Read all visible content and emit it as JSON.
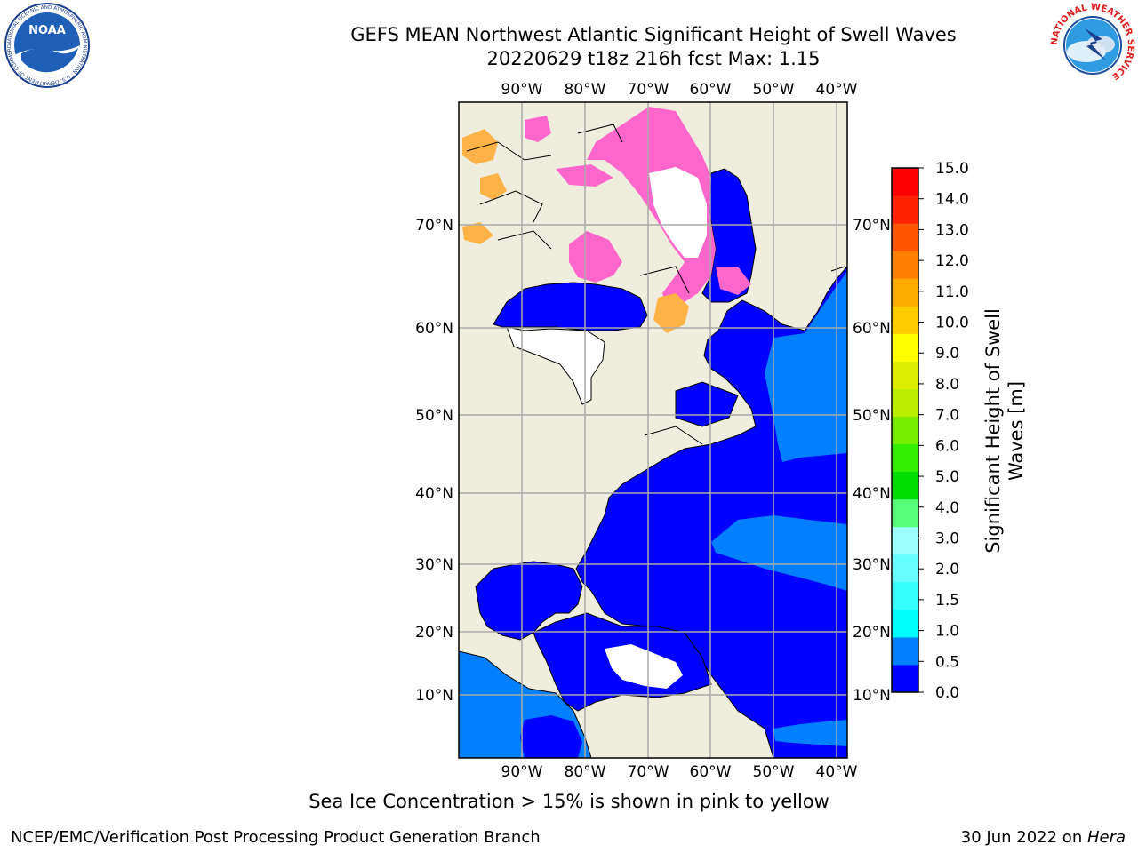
{
  "header": {
    "title_line1": "GEFS MEAN Northwest Atlantic Significant Height of Swell Waves",
    "title_line2": "20220629 t18z 216h fcst   Max: 1.15"
  },
  "logos": {
    "noaa_text": "NOAA",
    "noaa_ring": "NATIONAL OCEANIC AND ATMOSPHERIC ADMINISTRATION · U.S. DEPARTMENT OF COMMERCE",
    "nws_ring": "NATIONAL WEATHER SERVICE"
  },
  "map": {
    "lon_ticks": [
      "90°W",
      "80°W",
      "70°W",
      "60°W",
      "50°W",
      "40°W"
    ],
    "lat_ticks": [
      "70°N",
      "60°N",
      "50°N",
      "40°N",
      "30°N",
      "20°N",
      "10°N"
    ],
    "colors": {
      "land": "#efedde",
      "ocean_low": "#0000ff",
      "ocean_mid": "#0080ff",
      "no_data": "#ffffff",
      "ice_pink": "#ff66cc",
      "ice_orange": "#ffb347",
      "grid": "#aaaaaa"
    }
  },
  "colorbar": {
    "label_line1": "Significant Height of Swell",
    "label_line2": "Waves [m]",
    "ticks": [
      "0.0",
      "0.5",
      "1.0",
      "1.5",
      "2.0",
      "3.0",
      "4.0",
      "5.0",
      "6.0",
      "7.0",
      "8.0",
      "9.0",
      "10.0",
      "11.0",
      "12.0",
      "13.0",
      "14.0",
      "15.0"
    ],
    "colors": [
      "#0000ff",
      "#0080ff",
      "#00ffff",
      "#33ffff",
      "#66ffff",
      "#99ffff",
      "#55ff77",
      "#00dd00",
      "#33ee00",
      "#77ee00",
      "#bbee00",
      "#ddee00",
      "#ffff00",
      "#ffcc00",
      "#ffaa00",
      "#ff8000",
      "#ff5500",
      "#ff2200",
      "#ff0000"
    ]
  },
  "caption": "Sea Ice Concentration > 15% is shown in pink to yellow",
  "footer": {
    "credit": "NCEP/EMC/Verification Post Processing Product Generation Branch",
    "date": "30 Jun 2022 on ",
    "machine": "Hera"
  }
}
